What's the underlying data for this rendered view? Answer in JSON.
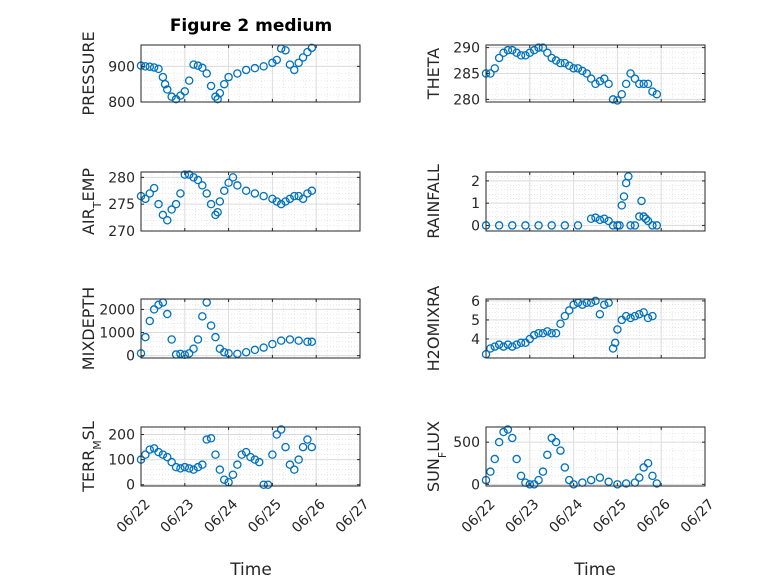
{
  "chart_data": {
    "type": "scatter",
    "title": "Figure 2 medium",
    "x_label": "Time",
    "x_ticks": [
      "06/22",
      "06/23",
      "06/24",
      "06/25",
      "06/26",
      "06/27"
    ],
    "marker_color": "#0072BD",
    "grid": true,
    "series": [
      {
        "ylabel": "PRESSURE",
        "ylim": [
          800,
          960
        ],
        "yticks": [
          800,
          900
        ],
        "x": [
          0.0,
          0.1,
          0.2,
          0.3,
          0.4,
          0.5,
          0.55,
          0.6,
          0.7,
          0.8,
          0.9,
          1.0,
          1.1,
          1.2,
          1.3,
          1.4,
          1.5,
          1.6,
          1.7,
          1.75,
          1.8,
          1.9,
          2.0,
          2.2,
          2.4,
          2.6,
          2.8,
          3.0,
          3.1,
          3.2,
          3.3,
          3.4,
          3.5,
          3.6,
          3.7,
          3.8,
          3.9
        ],
        "y": [
          902,
          900,
          899,
          897,
          893,
          870,
          850,
          835,
          815,
          808,
          818,
          830,
          860,
          905,
          902,
          896,
          880,
          845,
          815,
          808,
          825,
          850,
          870,
          880,
          890,
          895,
          900,
          910,
          918,
          950,
          945,
          905,
          890,
          910,
          925,
          940,
          952
        ]
      },
      {
        "ylabel": "THETA",
        "ylim": [
          279.5,
          290.5
        ],
        "yticks": [
          280,
          285,
          290
        ],
        "x": [
          0.0,
          0.1,
          0.2,
          0.3,
          0.4,
          0.5,
          0.6,
          0.7,
          0.8,
          0.9,
          1.0,
          1.1,
          1.2,
          1.3,
          1.4,
          1.5,
          1.6,
          1.7,
          1.8,
          1.9,
          2.0,
          2.1,
          2.2,
          2.3,
          2.4,
          2.5,
          2.6,
          2.7,
          2.8,
          2.9,
          3.0,
          3.1,
          3.2,
          3.3,
          3.4,
          3.5,
          3.6,
          3.7,
          3.8,
          3.9
        ],
        "y": [
          285,
          285,
          286,
          288,
          289,
          289.5,
          289.5,
          289,
          288.5,
          288.5,
          289,
          289.5,
          290,
          290,
          289,
          288,
          287.5,
          287,
          287,
          286.5,
          286,
          286,
          285.5,
          285,
          284,
          283,
          283.5,
          284,
          283,
          280,
          279.8,
          281,
          283,
          285,
          284,
          283,
          283,
          283,
          281.5,
          281
        ]
      },
      {
        "ylabel": "AIR_TEMP",
        "ylim": [
          270,
          281
        ],
        "yticks": [
          270,
          275,
          280
        ],
        "x": [
          0.0,
          0.1,
          0.2,
          0.3,
          0.4,
          0.5,
          0.6,
          0.7,
          0.8,
          0.9,
          1.0,
          1.1,
          1.2,
          1.3,
          1.4,
          1.5,
          1.6,
          1.7,
          1.75,
          1.8,
          1.9,
          2.0,
          2.1,
          2.2,
          2.4,
          2.6,
          2.8,
          3.0,
          3.1,
          3.2,
          3.3,
          3.4,
          3.5,
          3.6,
          3.7,
          3.8,
          3.9
        ],
        "y": [
          276.5,
          276,
          277,
          278,
          275,
          273,
          272,
          274,
          275,
          277,
          280.5,
          280.5,
          280,
          279.5,
          278.5,
          277,
          275,
          273,
          273.5,
          275.5,
          277.5,
          279,
          280,
          278.5,
          277.5,
          277,
          276.5,
          276,
          275.5,
          275,
          275.5,
          276,
          276.5,
          276.5,
          276,
          277,
          277.5
        ]
      },
      {
        "ylabel": "RAINFALL",
        "ylim": [
          -0.25,
          2.4
        ],
        "yticks": [
          0,
          1,
          2
        ],
        "x": [
          0.0,
          0.3,
          0.6,
          0.9,
          1.2,
          1.5,
          1.8,
          2.1,
          2.4,
          2.5,
          2.6,
          2.7,
          2.8,
          2.9,
          3.0,
          3.05,
          3.1,
          3.15,
          3.2,
          3.25,
          3.3,
          3.4,
          3.5,
          3.55,
          3.6,
          3.65,
          3.7,
          3.8,
          3.9
        ],
        "y": [
          0,
          0,
          0,
          0,
          0,
          0,
          0,
          0,
          0.3,
          0.35,
          0.25,
          0.3,
          0.2,
          0,
          0,
          0,
          0.9,
          1.3,
          1.9,
          2.2,
          0,
          0,
          0.4,
          1.1,
          0.4,
          0.3,
          0.2,
          0,
          0
        ]
      },
      {
        "ylabel": "MIXDEPTH",
        "ylim": [
          -100,
          2450
        ],
        "yticks": [
          0,
          1000,
          2000
        ],
        "x": [
          0.0,
          0.1,
          0.2,
          0.3,
          0.4,
          0.5,
          0.6,
          0.7,
          0.8,
          0.9,
          1.0,
          1.1,
          1.2,
          1.3,
          1.4,
          1.5,
          1.6,
          1.7,
          1.8,
          1.9,
          2.0,
          2.2,
          2.4,
          2.6,
          2.8,
          3.0,
          3.2,
          3.4,
          3.6,
          3.8,
          3.9
        ],
        "y": [
          100,
          800,
          1500,
          2000,
          2200,
          2300,
          1800,
          700,
          50,
          80,
          40,
          100,
          300,
          700,
          1700,
          2300,
          1300,
          800,
          300,
          150,
          100,
          80,
          150,
          250,
          350,
          500,
          650,
          700,
          650,
          600,
          600
        ]
      },
      {
        "ylabel": "H2OMIXRA",
        "ylim": [
          3.0,
          6.1
        ],
        "yticks": [
          4,
          5,
          6
        ],
        "x": [
          0.0,
          0.1,
          0.2,
          0.3,
          0.4,
          0.5,
          0.6,
          0.7,
          0.8,
          0.9,
          1.0,
          1.1,
          1.2,
          1.3,
          1.4,
          1.5,
          1.6,
          1.7,
          1.8,
          1.9,
          2.0,
          2.1,
          2.2,
          2.3,
          2.4,
          2.5,
          2.6,
          2.7,
          2.8,
          2.9,
          2.95,
          3.0,
          3.1,
          3.2,
          3.3,
          3.4,
          3.5,
          3.6,
          3.7,
          3.8
        ],
        "y": [
          3.2,
          3.5,
          3.6,
          3.7,
          3.6,
          3.7,
          3.6,
          3.7,
          3.8,
          3.8,
          4.0,
          4.2,
          4.3,
          4.3,
          4.4,
          4.3,
          4.3,
          4.8,
          5.2,
          5.5,
          5.8,
          5.9,
          5.8,
          5.9,
          5.9,
          6.0,
          5.3,
          5.8,
          5.9,
          3.5,
          3.8,
          4.5,
          5.0,
          5.2,
          5.1,
          5.2,
          5.3,
          5.4,
          5.1,
          5.2
        ]
      },
      {
        "ylabel": "TERR_MSL",
        "ylim": [
          -5,
          230
        ],
        "yticks": [
          0,
          100,
          200
        ],
        "x": [
          0.0,
          0.1,
          0.2,
          0.3,
          0.4,
          0.5,
          0.6,
          0.7,
          0.8,
          0.9,
          1.0,
          1.1,
          1.2,
          1.3,
          1.4,
          1.5,
          1.6,
          1.7,
          1.8,
          1.9,
          2.0,
          2.1,
          2.2,
          2.3,
          2.4,
          2.5,
          2.6,
          2.7,
          2.8,
          2.9,
          3.0,
          3.1,
          3.2,
          3.3,
          3.4,
          3.5,
          3.6,
          3.7,
          3.8,
          3.9
        ],
        "y": [
          100,
          120,
          140,
          145,
          130,
          120,
          110,
          90,
          70,
          65,
          70,
          65,
          60,
          70,
          80,
          180,
          185,
          120,
          60,
          20,
          10,
          40,
          80,
          120,
          130,
          110,
          100,
          90,
          0,
          0,
          120,
          200,
          220,
          150,
          80,
          60,
          100,
          150,
          180,
          150
        ]
      },
      {
        "ylabel": "SUN_FLUX",
        "ylim": [
          -20,
          680
        ],
        "yticks": [
          0,
          500
        ],
        "x": [
          0.0,
          0.1,
          0.2,
          0.3,
          0.4,
          0.5,
          0.6,
          0.7,
          0.8,
          0.9,
          1.0,
          1.1,
          1.2,
          1.3,
          1.4,
          1.5,
          1.6,
          1.7,
          1.8,
          1.9,
          2.0,
          2.2,
          2.4,
          2.6,
          2.8,
          3.0,
          3.2,
          3.4,
          3.5,
          3.6,
          3.7,
          3.8,
          3.9
        ],
        "y": [
          50,
          150,
          300,
          500,
          620,
          650,
          550,
          300,
          100,
          20,
          0,
          0,
          50,
          150,
          350,
          550,
          500,
          400,
          200,
          50,
          0,
          20,
          50,
          80,
          30,
          0,
          10,
          20,
          80,
          200,
          250,
          100,
          10
        ]
      }
    ]
  }
}
